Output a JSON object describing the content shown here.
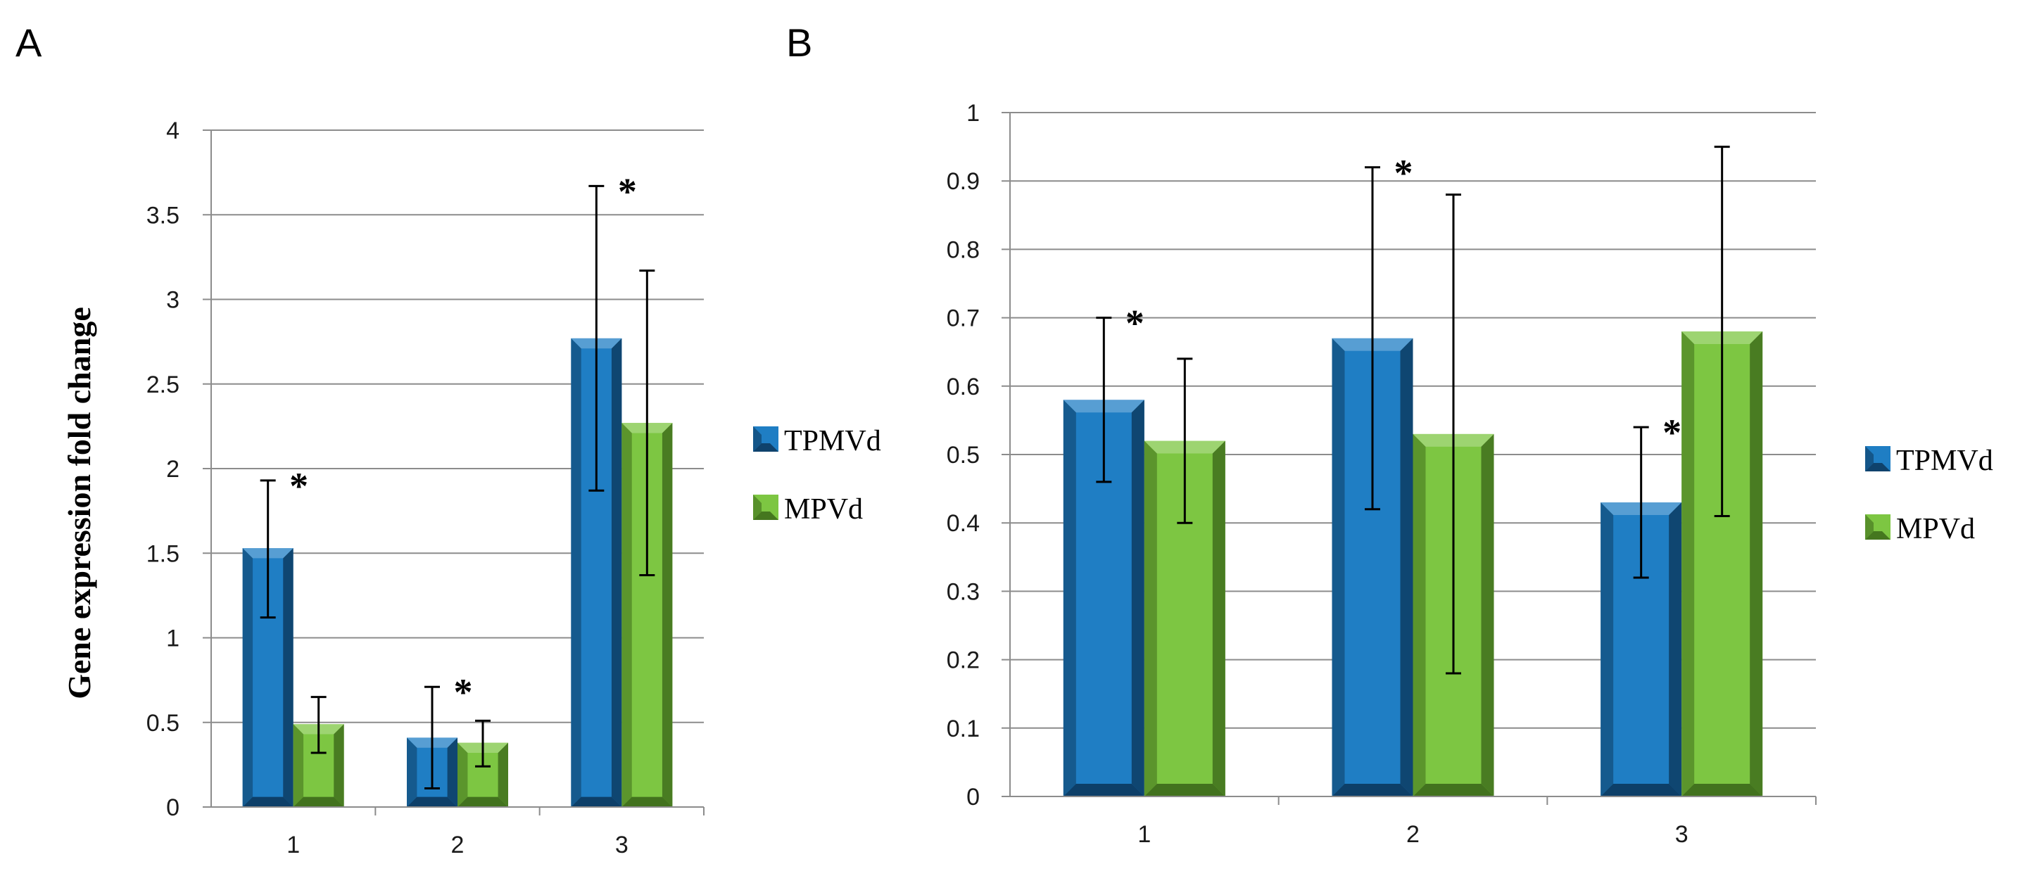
{
  "colors": {
    "tpmvd": "#1f7ec4",
    "tpmvd_dark": "#0d3c63",
    "mpvd": "#7dc642",
    "mpvd_dark": "#3f6e1c"
  },
  "chart_data": [
    {
      "panel": "A",
      "type": "bar",
      "title": "",
      "xlabel": "",
      "ylabel": "Gene expression fold change",
      "ylim": [
        0,
        4
      ],
      "yticks": [
        "0",
        "0.5",
        "1",
        "1.5",
        "2",
        "2.5",
        "3",
        "3.5",
        "4"
      ],
      "categories": [
        "1",
        "2",
        "3"
      ],
      "series": [
        {
          "name": "TPMVd",
          "values": [
            1.53,
            0.41,
            2.77
          ],
          "err_low": [
            1.12,
            0.11,
            1.87
          ],
          "err_high": [
            1.93,
            0.71,
            3.67
          ]
        },
        {
          "name": "MPVd",
          "values": [
            0.49,
            0.38,
            2.27
          ],
          "err_low": [
            0.32,
            0.24,
            1.37
          ],
          "err_high": [
            0.65,
            0.51,
            3.17
          ]
        }
      ],
      "significance": [
        {
          "category": "1",
          "series": "TPMVd",
          "label": "*"
        },
        {
          "category": "2",
          "series": "TPMVd",
          "label": "*"
        },
        {
          "category": "3",
          "series": "TPMVd",
          "label": "*"
        }
      ],
      "legend": [
        "TPMVd",
        "MPVd"
      ],
      "legend_position": "right",
      "grid": true
    },
    {
      "panel": "B",
      "type": "bar",
      "title": "",
      "xlabel": "",
      "ylabel": "",
      "ylim": [
        0,
        1
      ],
      "yticks": [
        "0",
        "0.1",
        "0.2",
        "0.3",
        "0.4",
        "0.5",
        "0.6",
        "0.7",
        "0.8",
        "0.9",
        "1"
      ],
      "categories": [
        "1",
        "2",
        "3"
      ],
      "series": [
        {
          "name": "TPMVd",
          "values": [
            0.58,
            0.67,
            0.43
          ],
          "err_low": [
            0.46,
            0.42,
            0.32
          ],
          "err_high": [
            0.7,
            0.92,
            0.54
          ]
        },
        {
          "name": "MPVd",
          "values": [
            0.52,
            0.53,
            0.68
          ],
          "err_low": [
            0.4,
            0.18,
            0.41
          ],
          "err_high": [
            0.64,
            0.88,
            0.95
          ]
        }
      ],
      "significance": [
        {
          "category": "1",
          "series": "TPMVd",
          "label": "*"
        },
        {
          "category": "2",
          "series": "TPMVd",
          "label": "*"
        },
        {
          "category": "3",
          "series": "TPMVd",
          "label": "*"
        }
      ],
      "legend": [
        "TPMVd",
        "MPVd"
      ],
      "legend_position": "right",
      "grid": true
    }
  ]
}
